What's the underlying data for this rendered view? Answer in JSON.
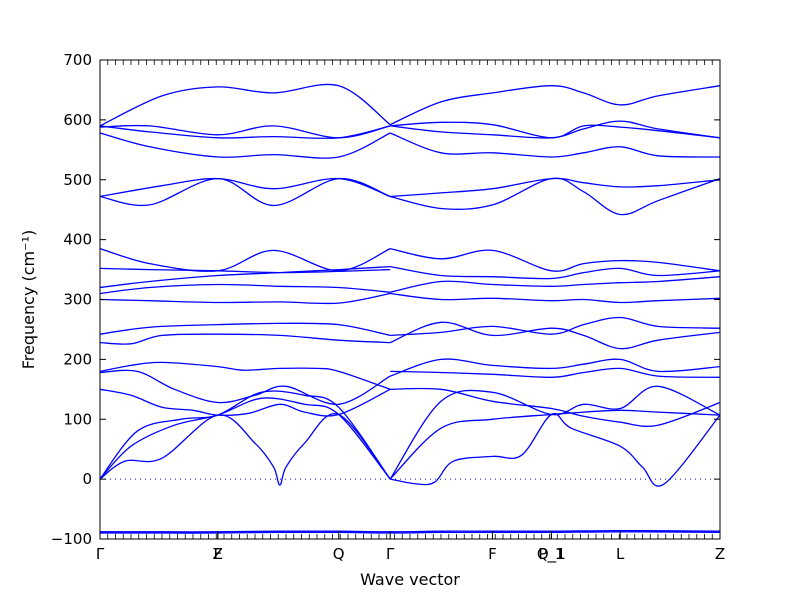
{
  "chart_data": {
    "type": "line",
    "xlabel": "Wave vector",
    "ylabel": "Frequency (cm⁻¹)",
    "ylim": [
      -100,
      700
    ],
    "yticks": [
      -100,
      0,
      100,
      200,
      300,
      400,
      500,
      600,
      700
    ],
    "grid": false,
    "legend": "none",
    "line_color": "#0000ff",
    "zero_line": true,
    "path_points": [
      {
        "label": "Γ",
        "x": 0
      },
      {
        "label": "Z",
        "x": 0.19
      },
      {
        "label": "F",
        "x": 0.19
      },
      {
        "label": "Q",
        "x": 0.385
      },
      {
        "label": "Γ",
        "x": 0.468
      },
      {
        "label": "F",
        "x": 0.633
      },
      {
        "label": "P_1",
        "x": 0.728
      },
      {
        "label": "Q_1",
        "x": 0.728
      },
      {
        "label": "L",
        "x": 0.839
      },
      {
        "label": "Z",
        "x": 1.0
      }
    ],
    "series": [
      {
        "x": [
          0,
          0.1,
          0.19,
          0.29,
          0.385,
          0.468,
          0.55,
          0.633,
          0.728,
          0.839,
          1.0
        ],
        "y": [
          -88,
          -88,
          -88,
          -87,
          -87,
          -88,
          -87,
          -87,
          -87,
          -86,
          -87
        ]
      },
      {
        "x": [
          0,
          0.1,
          0.19,
          0.29,
          0.385,
          0.468,
          0.55,
          0.633,
          0.728,
          0.839,
          1.0
        ],
        "y": [
          -90,
          -90,
          -90,
          -89,
          -89,
          -90,
          -89,
          -89,
          -89,
          -88,
          -89
        ]
      },
      {
        "x": [
          0,
          0.04,
          0.1,
          0.19,
          0.25,
          0.28,
          0.29,
          0.3,
          0.33,
          0.385,
          0.468
        ],
        "y": [
          0,
          30,
          35,
          107,
          60,
          20,
          -10,
          20,
          60,
          108,
          0
        ]
      },
      {
        "x": [
          0,
          0.05,
          0.12,
          0.19,
          0.26,
          0.33,
          0.385,
          0.468
        ],
        "y": [
          0,
          55,
          90,
          107,
          135,
          125,
          108,
          0
        ]
      },
      {
        "x": [
          0,
          0.06,
          0.13,
          0.19,
          0.26,
          0.33,
          0.385,
          0.468
        ],
        "y": [
          0,
          80,
          100,
          107,
          145,
          140,
          120,
          0
        ]
      },
      {
        "x": [
          0,
          0.05,
          0.1,
          0.15,
          0.19,
          0.24,
          0.29,
          0.33,
          0.385,
          0.468
        ],
        "y": [
          150,
          140,
          120,
          115,
          107,
          110,
          125,
          112,
          108,
          150
        ]
      },
      {
        "x": [
          0,
          0.05,
          0.1,
          0.19,
          0.23,
          0.29,
          0.35,
          0.385,
          0.468
        ],
        "y": [
          180,
          190,
          195,
          188,
          182,
          185,
          185,
          180,
          150
        ]
      },
      {
        "x": [
          0,
          0.06,
          0.12,
          0.19,
          0.25,
          0.3,
          0.385,
          0.468
        ],
        "y": [
          178,
          180,
          150,
          128,
          140,
          155,
          125,
          172
        ]
      },
      {
        "x": [
          0,
          0.05,
          0.1,
          0.19,
          0.29,
          0.385,
          0.468
        ],
        "y": [
          228,
          226,
          240,
          242,
          240,
          232,
          228
        ]
      },
      {
        "x": [
          0,
          0.05,
          0.1,
          0.19,
          0.29,
          0.385,
          0.468
        ],
        "y": [
          242,
          250,
          255,
          258,
          260,
          258,
          240
        ]
      },
      {
        "x": [
          0,
          0.08,
          0.19,
          0.29,
          0.385,
          0.468
        ],
        "y": [
          300,
          298,
          295,
          296,
          294,
          310
        ]
      },
      {
        "x": [
          0,
          0.08,
          0.19,
          0.29,
          0.385,
          0.468
        ],
        "y": [
          310,
          320,
          325,
          322,
          320,
          312
        ]
      },
      {
        "x": [
          0,
          0.08,
          0.19,
          0.29,
          0.385,
          0.468
        ],
        "y": [
          320,
          330,
          340,
          345,
          350,
          355
        ]
      },
      {
        "x": [
          0,
          0.08,
          0.19,
          0.29,
          0.385,
          0.468
        ],
        "y": [
          352,
          350,
          348,
          345,
          347,
          350
        ]
      },
      {
        "x": [
          0,
          0.08,
          0.19,
          0.28,
          0.385,
          0.468
        ],
        "y": [
          385,
          360,
          348,
          382,
          348,
          385
        ]
      },
      {
        "x": [
          0,
          0.08,
          0.19,
          0.28,
          0.385,
          0.468
        ],
        "y": [
          472,
          458,
          502,
          457,
          502,
          472
        ]
      },
      {
        "x": [
          0,
          0.1,
          0.19,
          0.28,
          0.385,
          0.468
        ],
        "y": [
          472,
          490,
          502,
          485,
          502,
          472
        ]
      },
      {
        "x": [
          0,
          0.08,
          0.19,
          0.28,
          0.385,
          0.468
        ],
        "y": [
          578,
          555,
          538,
          542,
          538,
          578
        ]
      },
      {
        "x": [
          0,
          0.08,
          0.19,
          0.28,
          0.385,
          0.468
        ],
        "y": [
          588,
          590,
          575,
          590,
          570,
          590
        ]
      },
      {
        "x": [
          0,
          0.08,
          0.19,
          0.28,
          0.385,
          0.468
        ],
        "y": [
          590,
          580,
          570,
          572,
          570,
          590
        ]
      },
      {
        "x": [
          0,
          0.1,
          0.19,
          0.28,
          0.385,
          0.468
        ],
        "y": [
          590,
          640,
          655,
          645,
          657,
          592
        ]
      },
      {
        "x": [
          0.468,
          0.51,
          0.54,
          0.57,
          0.633,
          0.68,
          0.728,
          0.76,
          0.839,
          0.875,
          0.91,
          1.0
        ],
        "y": [
          0,
          -8,
          -5,
          30,
          38,
          40,
          108,
          85,
          55,
          20,
          -8,
          107
        ]
      },
      {
        "x": [
          0.468,
          0.55,
          0.633,
          0.728,
          0.78,
          0.839,
          0.9,
          1.0
        ],
        "y": [
          0,
          85,
          100,
          108,
          112,
          115,
          112,
          107
        ]
      },
      {
        "x": [
          0.468,
          0.55,
          0.633,
          0.728,
          0.78,
          0.839,
          0.9,
          1.0
        ],
        "y": [
          0,
          130,
          145,
          108,
          125,
          118,
          155,
          107
        ]
      },
      {
        "x": [
          0.468,
          0.55,
          0.633,
          0.728,
          0.78,
          0.839,
          0.9,
          1.0
        ],
        "y": [
          150,
          150,
          130,
          118,
          105,
          95,
          90,
          128
        ]
      },
      {
        "x": [
          0.468,
          0.55,
          0.633,
          0.728,
          0.78,
          0.839,
          0.9,
          1.0
        ],
        "y": [
          172,
          200,
          190,
          185,
          192,
          200,
          180,
          188
        ]
      },
      {
        "x": [
          0.468,
          0.55,
          0.633,
          0.728,
          0.78,
          0.839,
          0.9,
          1.0
        ],
        "y": [
          180,
          178,
          175,
          170,
          178,
          185,
          172,
          170
        ]
      },
      {
        "x": [
          0.468,
          0.55,
          0.633,
          0.728,
          0.78,
          0.839,
          0.9,
          1.0
        ],
        "y": [
          228,
          262,
          240,
          252,
          240,
          218,
          232,
          245
        ]
      },
      {
        "x": [
          0.468,
          0.55,
          0.633,
          0.728,
          0.78,
          0.839,
          0.9,
          1.0
        ],
        "y": [
          240,
          245,
          255,
          242,
          258,
          270,
          255,
          252
        ]
      },
      {
        "x": [
          0.468,
          0.55,
          0.633,
          0.728,
          0.78,
          0.839,
          0.9,
          1.0
        ],
        "y": [
          310,
          300,
          302,
          298,
          300,
          295,
          298,
          302
        ]
      },
      {
        "x": [
          0.468,
          0.55,
          0.633,
          0.728,
          0.78,
          0.839,
          0.9,
          1.0
        ],
        "y": [
          312,
          330,
          325,
          322,
          325,
          328,
          330,
          338
        ]
      },
      {
        "x": [
          0.468,
          0.55,
          0.633,
          0.728,
          0.78,
          0.839,
          0.9,
          1.0
        ],
        "y": [
          355,
          340,
          338,
          335,
          345,
          352,
          340,
          348
        ]
      },
      {
        "x": [
          0.468,
          0.55,
          0.633,
          0.728,
          0.78,
          0.839,
          0.9,
          1.0
        ],
        "y": [
          385,
          368,
          382,
          348,
          360,
          365,
          362,
          348
        ]
      },
      {
        "x": [
          0.468,
          0.55,
          0.633,
          0.728,
          0.78,
          0.839,
          0.9,
          1.0
        ],
        "y": [
          472,
          478,
          485,
          502,
          495,
          488,
          490,
          500
        ]
      },
      {
        "x": [
          0.468,
          0.55,
          0.633,
          0.728,
          0.78,
          0.839,
          0.9,
          1.0
        ],
        "y": [
          472,
          452,
          458,
          502,
          480,
          442,
          465,
          502
        ]
      },
      {
        "x": [
          0.468,
          0.55,
          0.633,
          0.728,
          0.78,
          0.839,
          0.9,
          1.0
        ],
        "y": [
          578,
          545,
          545,
          538,
          545,
          555,
          540,
          538
        ]
      },
      {
        "x": [
          0.468,
          0.55,
          0.633,
          0.728,
          0.78,
          0.839,
          0.9,
          1.0
        ],
        "y": [
          590,
          580,
          575,
          570,
          585,
          598,
          585,
          570
        ]
      },
      {
        "x": [
          0.468,
          0.55,
          0.633,
          0.728,
          0.78,
          0.839,
          0.9,
          1.0
        ],
        "y": [
          590,
          596,
          592,
          570,
          590,
          588,
          582,
          570
        ]
      },
      {
        "x": [
          0.468,
          0.55,
          0.633,
          0.728,
          0.78,
          0.839,
          0.9,
          1.0
        ],
        "y": [
          592,
          630,
          645,
          657,
          645,
          625,
          640,
          657
        ]
      }
    ]
  }
}
